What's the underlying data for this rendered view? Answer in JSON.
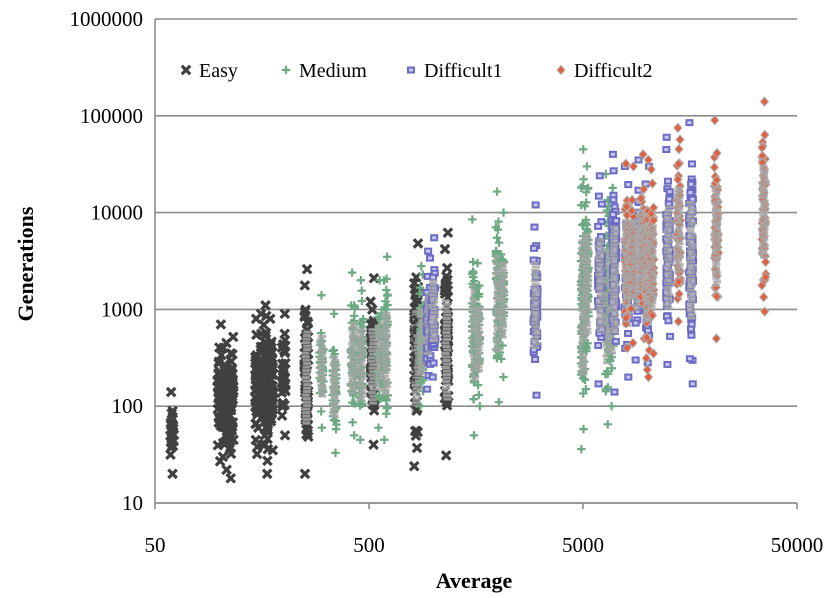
{
  "chart_data": {
    "type": "scatter",
    "title": "",
    "xlabel": "Average",
    "ylabel": "Generations",
    "xscale": "log",
    "yscale": "log",
    "xlim": [
      50,
      50000
    ],
    "ylim": [
      10,
      1000000
    ],
    "x_ticks": [
      50,
      500,
      5000,
      50000
    ],
    "x_tick_labels": [
      "50",
      "500",
      "5000",
      "50000"
    ],
    "y_ticks": [
      10,
      100,
      1000,
      10000,
      100000,
      1000000
    ],
    "y_tick_labels": [
      "10",
      "100",
      "1000",
      "10000",
      "100000",
      "1000000"
    ],
    "grid": "horizontal",
    "legend_position": "top",
    "series": [
      {
        "name": "Easy",
        "color": "#404040",
        "marker": "x",
        "columns": [
          {
            "x": 60,
            "y_min": 20,
            "y_max": 140
          },
          {
            "x": 100,
            "y_min": 27,
            "y_max": 700
          },
          {
            "x": 105,
            "y_min": 30,
            "y_max": 400
          },
          {
            "x": 110,
            "y_min": 22,
            "y_max": 450
          },
          {
            "x": 114,
            "y_min": 18,
            "y_max": 520
          },
          {
            "x": 150,
            "y_min": 32,
            "y_max": 800
          },
          {
            "x": 158,
            "y_min": 40,
            "y_max": 900
          },
          {
            "x": 166,
            "y_min": 20,
            "y_max": 1100
          },
          {
            "x": 175,
            "y_min": 35,
            "y_max": 800
          },
          {
            "x": 200,
            "y_min": 50,
            "y_max": 900
          },
          {
            "x": 255,
            "y_min": 20,
            "y_max": 2600
          },
          {
            "x": 520,
            "y_min": 40,
            "y_max": 2100
          },
          {
            "x": 830,
            "y_min": 24,
            "y_max": 4800
          },
          {
            "x": 1150,
            "y_min": 31,
            "y_max": 6200
          },
          {
            "x": 850,
            "y_min": 90,
            "y_max": 1200
          }
        ]
      },
      {
        "name": "Medium",
        "color": "#6daa84",
        "marker": "plus",
        "columns": [
          {
            "x": 300,
            "y_min": 60,
            "y_max": 1400
          },
          {
            "x": 345,
            "y_min": 33,
            "y_max": 900
          },
          {
            "x": 420,
            "y_min": 50,
            "y_max": 2400
          },
          {
            "x": 460,
            "y_min": 45,
            "y_max": 2000
          },
          {
            "x": 560,
            "y_min": 60,
            "y_max": 2000
          },
          {
            "x": 600,
            "y_min": 45,
            "y_max": 3500
          },
          {
            "x": 880,
            "y_min": 100,
            "y_max": 2800
          },
          {
            "x": 1550,
            "y_min": 50,
            "y_max": 8500
          },
          {
            "x": 1620,
            "y_min": 100,
            "y_max": 3000
          },
          {
            "x": 2000,
            "y_min": 110,
            "y_max": 16500
          },
          {
            "x": 2100,
            "y_min": 200,
            "y_max": 10000
          },
          {
            "x": 5000,
            "y_min": 36,
            "y_max": 45000
          },
          {
            "x": 5200,
            "y_min": 150,
            "y_max": 30000
          },
          {
            "x": 6500,
            "y_min": 65,
            "y_max": 25000
          },
          {
            "x": 6800,
            "y_min": 100,
            "y_max": 18000
          }
        ]
      },
      {
        "name": "Difficult1",
        "color": "#6b6bc4",
        "marker": "square",
        "columns": [
          {
            "x": 950,
            "y_min": 150,
            "y_max": 4000
          },
          {
            "x": 1000,
            "y_min": 200,
            "y_max": 5500
          },
          {
            "x": 3000,
            "y_min": 130,
            "y_max": 12000
          },
          {
            "x": 6000,
            "y_min": 170,
            "y_max": 24000
          },
          {
            "x": 7000,
            "y_min": 140,
            "y_max": 40000
          },
          {
            "x": 8000,
            "y_min": 200,
            "y_max": 30000
          },
          {
            "x": 9000,
            "y_min": 300,
            "y_max": 35000
          },
          {
            "x": 10000,
            "y_min": 280,
            "y_max": 30000
          },
          {
            "x": 12500,
            "y_min": 270,
            "y_max": 60000
          },
          {
            "x": 16000,
            "y_min": 170,
            "y_max": 85000
          }
        ]
      },
      {
        "name": "Difficult2",
        "color": "#e06040",
        "marker": "diamond",
        "columns": [
          {
            "x": 8000,
            "y_min": 400,
            "y_max": 32000
          },
          {
            "x": 8500,
            "y_min": 450,
            "y_max": 30000
          },
          {
            "x": 9500,
            "y_min": 500,
            "y_max": 40000
          },
          {
            "x": 10000,
            "y_min": 200,
            "y_max": 35000
          },
          {
            "x": 10500,
            "y_min": 350,
            "y_max": 28000
          },
          {
            "x": 14000,
            "y_min": 750,
            "y_max": 75000
          },
          {
            "x": 21000,
            "y_min": 500,
            "y_max": 90000
          },
          {
            "x": 35000,
            "y_min": 950,
            "y_max": 140000
          }
        ]
      }
    ]
  }
}
